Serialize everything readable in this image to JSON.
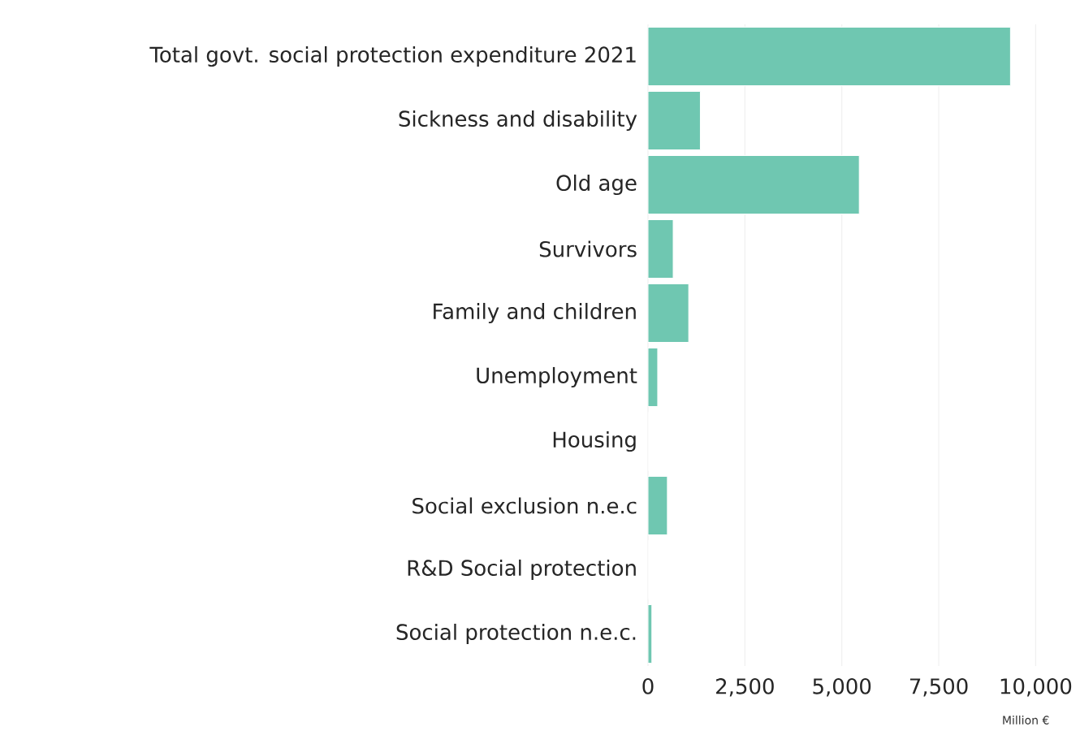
{
  "chart_data": {
    "type": "bar",
    "orientation": "horizontal",
    "xlabel": "Million €",
    "categories": [
      "Total govt. social protection expenditure 2021",
      "Sickness and disability",
      "Old age",
      "Survivors",
      "Family and children",
      "Unemployment",
      "Housing",
      "Social exclusion n.e.c",
      "R&D Social protection",
      "Social protection n.e.c."
    ],
    "values": [
      9350,
      1350,
      5450,
      650,
      1050,
      250,
      0,
      500,
      0,
      100
    ],
    "color": "#6fc7b1",
    "xlim": [
      0,
      10000
    ],
    "xticks": [
      0,
      {
        "value": 2500,
        "label": "2,500"
      },
      {
        "value": 5000,
        "label": "5,000"
      },
      {
        "value": 7500,
        "label": "7,500"
      },
      {
        "value": 10000,
        "label": "10,000"
      }
    ],
    "grid": "x"
  }
}
